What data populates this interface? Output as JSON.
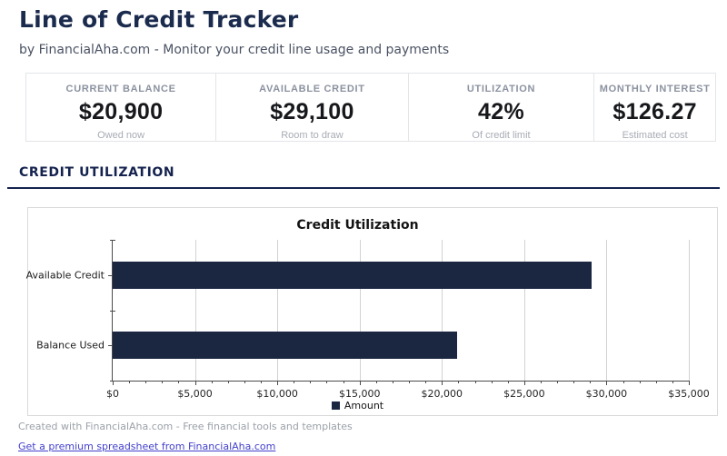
{
  "page": {
    "title": "Line of Credit Tracker",
    "subtitle": "by FinancialAha.com - Monitor your credit line usage and payments"
  },
  "stats": {
    "cards": [
      {
        "label": "CURRENT BALANCE",
        "value": "$20,900",
        "sub": "Owed now"
      },
      {
        "label": "AVAILABLE CREDIT",
        "value": "$29,100",
        "sub": "Room to draw"
      },
      {
        "label": "UTILIZATION",
        "value": "42%",
        "sub": "Of credit limit"
      },
      {
        "label": "MONTHLY INTEREST",
        "value": "$126.27",
        "sub": "Estimated cost"
      }
    ]
  },
  "section": {
    "title": "CREDIT UTILIZATION"
  },
  "chart_data": {
    "type": "bar",
    "orientation": "horizontal",
    "title": "Credit Utilization",
    "categories": [
      "Available Credit",
      "Balance Used"
    ],
    "series": [
      {
        "name": "Amount",
        "values": [
          29100,
          20900
        ]
      }
    ],
    "xlim": [
      0,
      35000
    ],
    "x_tick_values": [
      0,
      5000,
      10000,
      15000,
      20000,
      25000,
      30000,
      35000
    ],
    "x_tick_labels": [
      "$0",
      "$5,000",
      "$10,000",
      "$15,000",
      "$20,000",
      "$25,000",
      "$30,000",
      "$35,000"
    ],
    "minor_tick_step": 1000,
    "grid": true,
    "legend_position": "bottom-center",
    "bar_color": "#1b2640"
  },
  "footer": {
    "credit": "Created with FinancialAha.com - Free financial tools and templates",
    "link": "Get a premium spreadsheet from FinancialAha.com"
  },
  "colors": {
    "accent_navy": "#14224e",
    "title_navy": "#1b2b4d",
    "bar_navy": "#1b2640",
    "link_blue": "#4340cc"
  }
}
